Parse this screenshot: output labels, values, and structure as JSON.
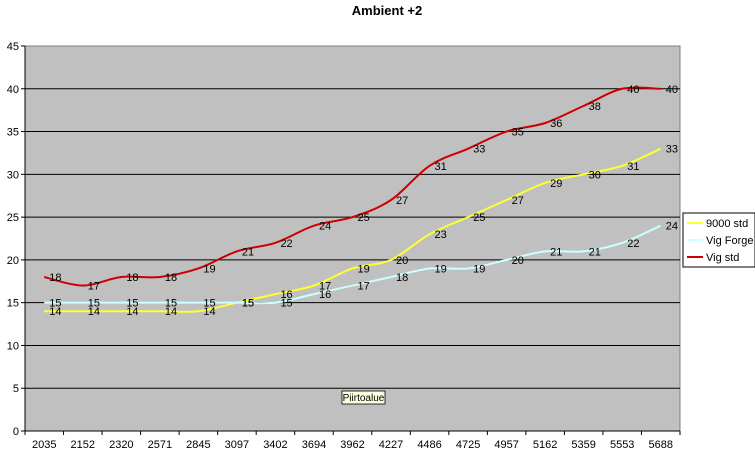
{
  "chart_data": {
    "type": "line",
    "title": "Ambient +2",
    "plot_area_label": "Piirtoalue",
    "categories": [
      "2035",
      "2152",
      "2320",
      "2571",
      "2845",
      "3097",
      "3402",
      "3694",
      "3962",
      "4227",
      "4486",
      "4725",
      "4957",
      "5162",
      "5359",
      "5553",
      "5688"
    ],
    "ylim": [
      0,
      45
    ],
    "ystep": 5,
    "grid": true,
    "legend_position": "right",
    "background": "#c0c0c0",
    "series": [
      {
        "name": "9000 std",
        "color": "#ffff33",
        "values": [
          14,
          14,
          14,
          14,
          14,
          15,
          16,
          17,
          19,
          20,
          23,
          25,
          27,
          29,
          30,
          31,
          33
        ]
      },
      {
        "name": "Vig Forge",
        "color": "#ccffff",
        "values": [
          15,
          15,
          15,
          15,
          15,
          15,
          15,
          16,
          17,
          18,
          19,
          19,
          20,
          21,
          21,
          22,
          24
        ]
      },
      {
        "name": "Vig std",
        "color": "#cc0000",
        "values": [
          18,
          17,
          18,
          18,
          19,
          21,
          22,
          24,
          25,
          27,
          31,
          33,
          35,
          36,
          38,
          40,
          40
        ]
      }
    ]
  }
}
